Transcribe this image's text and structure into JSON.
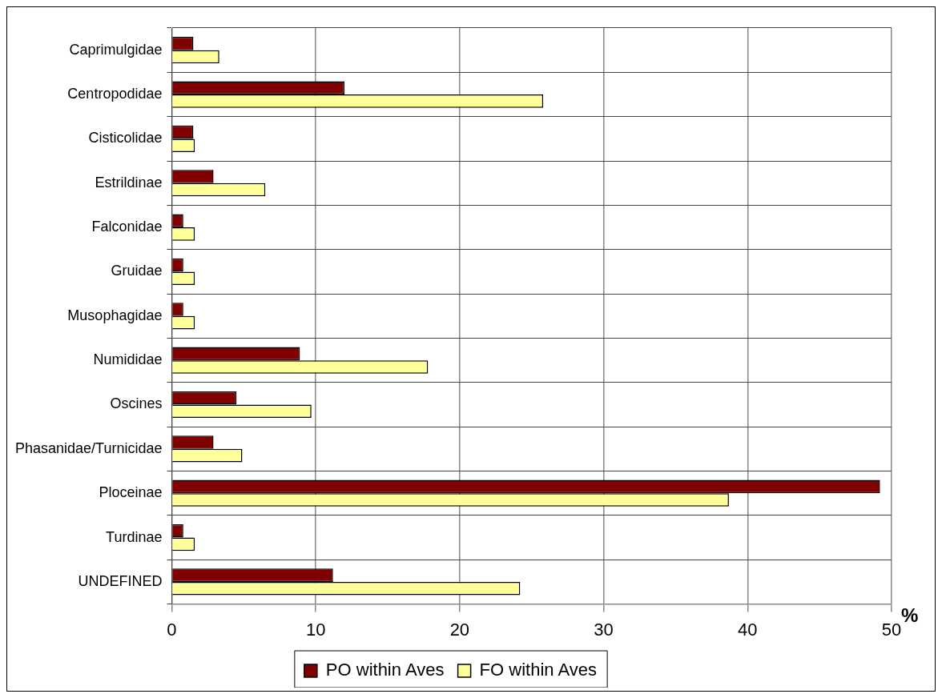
{
  "chart_data": {
    "type": "bar",
    "orientation": "horizontal",
    "xlabel": "%",
    "categories": [
      "Caprimulgidae",
      "Centropodidae",
      "Cisticolidae",
      "Estrildinae",
      "Falconidae",
      "Gruidae",
      "Musophagidae",
      "Numididae",
      "Oscines",
      "Phasanidae/Turnicidae",
      "Ploceinae",
      "Turdinae",
      "UNDEFINED"
    ],
    "series": [
      {
        "name": "PO within Aves",
        "color": "#800000",
        "values": [
          1.5,
          12.0,
          1.5,
          2.9,
          0.8,
          0.8,
          0.8,
          8.9,
          4.5,
          2.9,
          49.2,
          0.8,
          11.2
        ]
      },
      {
        "name": "FO within Aves",
        "color": "#ffff99",
        "values": [
          3.3,
          25.8,
          1.6,
          6.5,
          1.6,
          1.6,
          1.6,
          17.8,
          9.7,
          4.9,
          38.7,
          1.6,
          24.2
        ]
      }
    ],
    "xlim": [
      0,
      50
    ],
    "xticks": [
      0,
      10,
      20,
      30,
      40,
      50
    ],
    "grid": true,
    "legend": "bottom"
  }
}
